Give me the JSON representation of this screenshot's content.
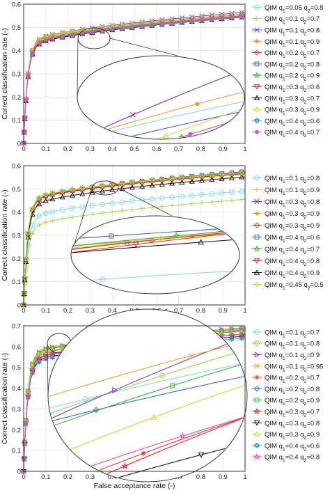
{
  "figure": {
    "xlabel": "False acceptance rate (-)"
  },
  "chart_data": [
    {
      "type": "line",
      "ylabel": "Correct classification rate (-)",
      "xlim": [
        0,
        1
      ],
      "ylim": [
        0,
        0.6
      ],
      "xticks": [
        "0",
        "0.1",
        "0.2",
        "0.3",
        "0.4",
        "0.5",
        "0.6",
        "0.7",
        "0.8",
        "0.9",
        "1"
      ],
      "yticks": [
        "0",
        "0.1",
        "0.2",
        "0.3",
        "0.4",
        "0.5",
        "0.6"
      ],
      "grid": true,
      "legend_position": "right",
      "series": [
        {
          "name": "QIM q1=0.05 q2=0.8",
          "q1": "0.05",
          "q2": "0.8",
          "color": "#77ddee",
          "marker": "circle",
          "final": 0.555
        },
        {
          "name": "QIM q1=0.1 q2=0.7",
          "q1": "0.1",
          "q2": "0.7",
          "color": "#99dd44",
          "marker": "plus",
          "final": 0.548
        },
        {
          "name": "QIM q1=0.1 q2=0.8",
          "q1": "0.1",
          "q2": "0.8",
          "color": "#7a33cc",
          "marker": "x",
          "final": 0.565
        },
        {
          "name": "QIM q1=0.1 q2=0.9",
          "q1": "0.1",
          "q2": "0.9",
          "color": "#f0a020",
          "marker": "dot",
          "final": 0.558
        },
        {
          "name": "QIM q1=0.2 q2=0.7",
          "q1": "0.2",
          "q2": "0.7",
          "color": "#ee3322",
          "marker": "diamond",
          "final": 0.545
        },
        {
          "name": "QIM q1=0.2 q2=0.8",
          "q1": "0.2",
          "q2": "0.8",
          "color": "#3366cc",
          "marker": "square",
          "final": 0.552
        },
        {
          "name": "QIM q1=0.2 q2=0.9",
          "q1": "0.2",
          "q2": "0.9",
          "color": "#33bb33",
          "marker": "star",
          "final": 0.55
        },
        {
          "name": "QIM q1=0.3 q2=0.6",
          "q1": "0.3",
          "q2": "0.6",
          "color": "#ee2222",
          "marker": "triangle-down",
          "final": 0.548
        },
        {
          "name": "QIM q1=0.3 q2=0.7",
          "q1": "0.3",
          "q2": "0.7",
          "color": "#111111",
          "marker": "triangle-up",
          "final": 0.545
        },
        {
          "name": "QIM q1=0.3 q2=0.9",
          "q1": "0.3",
          "q2": "0.9",
          "color": "#ccdd22",
          "marker": "triangle-up",
          "final": 0.553
        },
        {
          "name": "QIM q1=0.4 q2=0.6",
          "q1": "0.4",
          "q2": "0.6",
          "color": "#33aa99",
          "marker": "hexagram",
          "final": 0.545
        },
        {
          "name": "QIM q1=0.4 q2=0.7",
          "q1": "0.4",
          "q2": "0.7",
          "color": "#ee44cc",
          "marker": "dot",
          "final": 0.55
        }
      ]
    },
    {
      "type": "line",
      "ylabel": "Correct classification rate (-)",
      "xlim": [
        0,
        1
      ],
      "ylim": [
        0,
        0.6
      ],
      "xticks": [
        "0",
        "0.1",
        "0.2",
        "0.3",
        "0.4",
        "0.5",
        "0.6",
        "0.7",
        "0.8",
        "0.9",
        "1"
      ],
      "yticks": [
        "0",
        "0.1",
        "0.2",
        "0.3",
        "0.4",
        "0.5",
        "0.6"
      ],
      "grid": true,
      "legend_position": "right",
      "series": [
        {
          "name": "QIM q1=0.1 q2=0.8",
          "q1": "0.1",
          "q2": "0.8",
          "color": "#77ddee",
          "marker": "circle",
          "final": 0.49
        },
        {
          "name": "QIM q1=0.1 q2=0.9",
          "q1": "0.1",
          "q2": "0.9",
          "color": "#99dd44",
          "marker": "plus",
          "final": 0.455
        },
        {
          "name": "QIM q1=0.3 q2=0.8",
          "q1": "0.3",
          "q2": "0.8",
          "color": "#7a33cc",
          "marker": "x",
          "final": 0.572
        },
        {
          "name": "QIM q1=0.3 q2=0.9",
          "q1": "0.3",
          "q2": "0.9",
          "color": "#f0a020",
          "marker": "dot",
          "final": 0.565
        },
        {
          "name": "QIM q1=0.3 q2=0.9",
          "q1": "0.3",
          "q2": "0.9",
          "color": "#ee3322",
          "marker": "diamond",
          "final": 0.568
        },
        {
          "name": "QIM q1=0.4 q2=0.6",
          "q1": "0.4",
          "q2": "0.6",
          "color": "#3366cc",
          "marker": "square",
          "final": 0.575
        },
        {
          "name": "QIM q1=0.4 q2=0.7",
          "q1": "0.4",
          "q2": "0.7",
          "color": "#33bb33",
          "marker": "star",
          "final": 0.57
        },
        {
          "name": "QIM q1=0.4 q2=0.8",
          "q1": "0.4",
          "q2": "0.8",
          "color": "#ee2222",
          "marker": "triangle-down",
          "final": 0.566
        },
        {
          "name": "QIM q1=0.4 q2=0.9",
          "q1": "0.4",
          "q2": "0.9",
          "color": "#111111",
          "marker": "triangle-up",
          "final": 0.552
        },
        {
          "name": "QIM q1=0.45 q2=0.5",
          "q1": "0.45",
          "q2": "0.5",
          "color": "#ccdd22",
          "marker": "diamond",
          "final": 0.57
        }
      ]
    },
    {
      "type": "line",
      "ylabel": "Correct classification rate (-)",
      "xlabel": "False acceptance rate (-)",
      "xlim": [
        0,
        1
      ],
      "ylim": [
        0,
        0.7
      ],
      "xticks": [
        "0",
        "0.1",
        "0.2",
        "0.3",
        "0.4",
        "0.5",
        "0.6",
        "0.7",
        "0.8",
        "0.9",
        "1"
      ],
      "yticks": [
        "0",
        "0.1",
        "0.2",
        "0.3",
        "0.4",
        "0.5",
        "0.6",
        "0.7"
      ],
      "grid": true,
      "legend_position": "right",
      "series": [
        {
          "name": "QIM q1=0.1 q2=0.7",
          "q1": "0.1",
          "q2": "0.7",
          "color": "#77ddee",
          "marker": "circle",
          "final": 0.68
        },
        {
          "name": "QIM q1=0.1 q2=0.8",
          "q1": "0.1",
          "q2": "0.8",
          "color": "#88dd33",
          "marker": "circle",
          "final": 0.685
        },
        {
          "name": "QIM q1=0.1 q2=0.9",
          "q1": "0.1",
          "q2": "0.9",
          "color": "#8a33cc",
          "marker": "triangle-right",
          "final": 0.69
        },
        {
          "name": "QIM q1=0.1 q2=0.95",
          "q1": "0.1",
          "q2": "0.95",
          "color": "#f0a020",
          "marker": "x",
          "final": 0.688
        },
        {
          "name": "QIM q1=0.2 q2=0.7",
          "q1": "0.2",
          "q2": "0.7",
          "color": "#ee3322",
          "marker": "asterisk",
          "final": 0.66
        },
        {
          "name": "QIM q1=0.2 q2=0.8",
          "q1": "0.2",
          "q2": "0.8",
          "color": "#3366cc",
          "marker": "diamond",
          "final": 0.675
        },
        {
          "name": "QIM q1=0.2 q2=0.9",
          "q1": "0.2",
          "q2": "0.9",
          "color": "#33bb33",
          "marker": "square",
          "final": 0.68
        },
        {
          "name": "QIM q1=0.3 q2=0.7",
          "q1": "0.3",
          "q2": "0.7",
          "color": "#ee2222",
          "marker": "star",
          "final": 0.66
        },
        {
          "name": "QIM q1=0.3 q2=0.8",
          "q1": "0.3",
          "q2": "0.8",
          "color": "#111111",
          "marker": "triangle-down",
          "final": 0.65
        },
        {
          "name": "QIM q1=0.3 q2=0.9",
          "q1": "0.3",
          "q2": "0.9",
          "color": "#ccdd22",
          "marker": "triangle-up",
          "final": 0.672
        },
        {
          "name": "QIM q1=0.4 q2=0.6",
          "q1": "0.4",
          "q2": "0.6",
          "color": "#33aa99",
          "marker": "hexagram",
          "final": 0.64
        },
        {
          "name": "QIM q1=0.4 q2=0.8",
          "q1": "0.4",
          "q2": "0.8",
          "color": "#ee44cc",
          "marker": "star",
          "final": 0.66
        }
      ]
    }
  ]
}
